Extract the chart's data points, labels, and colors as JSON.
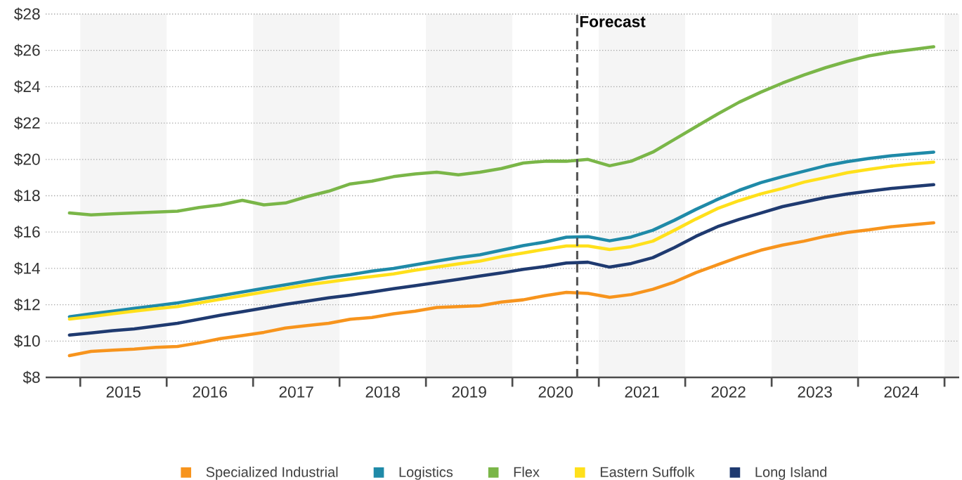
{
  "chart_data": {
    "type": "line",
    "x": [
      2014.875,
      2015.125,
      2015.375,
      2015.625,
      2015.875,
      2016.125,
      2016.375,
      2016.625,
      2016.875,
      2017.125,
      2017.375,
      2017.625,
      2017.875,
      2018.125,
      2018.375,
      2018.625,
      2018.875,
      2019.125,
      2019.375,
      2019.625,
      2019.875,
      2020.125,
      2020.375,
      2020.625,
      2020.875,
      2021.125,
      2021.375,
      2021.625,
      2021.875,
      2022.125,
      2022.375,
      2022.625,
      2022.875,
      2023.125,
      2023.375,
      2023.625,
      2023.875,
      2024.125,
      2024.375,
      2024.625,
      2024.875
    ],
    "series": [
      {
        "name": "Specialized Industrial",
        "color": "#f7941d",
        "values": [
          9.2,
          9.43,
          9.5,
          9.56,
          9.65,
          9.7,
          9.9,
          10.14,
          10.3,
          10.48,
          10.72,
          10.85,
          10.98,
          11.2,
          11.3,
          11.5,
          11.65,
          11.85,
          11.9,
          11.95,
          12.15,
          12.27,
          12.5,
          12.68,
          12.62,
          12.41,
          12.56,
          12.85,
          13.25,
          13.77,
          14.2,
          14.63,
          15.0,
          15.28,
          15.5,
          15.77,
          15.98,
          16.12,
          16.29,
          16.4,
          16.51
        ]
      },
      {
        "name": "Logistics",
        "color": "#1f8aa8",
        "values": [
          11.34,
          11.5,
          11.65,
          11.8,
          11.95,
          12.1,
          12.3,
          12.5,
          12.7,
          12.9,
          13.1,
          13.3,
          13.5,
          13.66,
          13.85,
          14.0,
          14.2,
          14.4,
          14.6,
          14.75,
          15.0,
          15.25,
          15.45,
          15.72,
          15.75,
          15.52,
          15.73,
          16.1,
          16.65,
          17.25,
          17.8,
          18.3,
          18.72,
          19.05,
          19.35,
          19.65,
          19.88,
          20.05,
          20.2,
          20.3,
          20.4
        ]
      },
      {
        "name": "Flex",
        "color": "#7ab648",
        "values": [
          17.05,
          16.95,
          17.0,
          17.05,
          17.1,
          17.15,
          17.35,
          17.5,
          17.75,
          17.5,
          17.6,
          17.95,
          18.25,
          18.65,
          18.8,
          19.05,
          19.2,
          19.3,
          19.15,
          19.3,
          19.5,
          19.8,
          19.9,
          19.9,
          20.0,
          19.65,
          19.9,
          20.4,
          21.1,
          21.8,
          22.5,
          23.15,
          23.7,
          24.2,
          24.65,
          25.05,
          25.4,
          25.7,
          25.9,
          26.05,
          26.2
        ]
      },
      {
        "name": "Eastern Suffolk",
        "color": "#ffe01b",
        "values": [
          11.21,
          11.35,
          11.5,
          11.65,
          11.78,
          11.9,
          12.1,
          12.3,
          12.5,
          12.7,
          12.9,
          13.1,
          13.25,
          13.42,
          13.55,
          13.7,
          13.9,
          14.07,
          14.25,
          14.4,
          14.65,
          14.85,
          15.05,
          15.23,
          15.23,
          15.04,
          15.2,
          15.5,
          16.1,
          16.72,
          17.3,
          17.73,
          18.1,
          18.4,
          18.75,
          19.0,
          19.27,
          19.45,
          19.62,
          19.75,
          19.85
        ]
      },
      {
        "name": "Long Island",
        "color": "#1f3a70",
        "values": [
          10.33,
          10.45,
          10.57,
          10.67,
          10.82,
          10.98,
          11.2,
          11.42,
          11.62,
          11.82,
          12.02,
          12.2,
          12.38,
          12.53,
          12.7,
          12.88,
          13.05,
          13.22,
          13.4,
          13.58,
          13.75,
          13.95,
          14.1,
          14.3,
          14.34,
          14.07,
          14.27,
          14.59,
          15.15,
          15.77,
          16.3,
          16.7,
          17.05,
          17.4,
          17.65,
          17.9,
          18.1,
          18.25,
          18.4,
          18.5,
          18.61
        ]
      }
    ],
    "xlim": [
      2014.6,
      2025.17
    ],
    "xticks": [
      {
        "value": 2015,
        "label": null
      },
      {
        "value": 2015.5,
        "label": "2015"
      },
      {
        "value": 2016,
        "label": null
      },
      {
        "value": 2016.5,
        "label": "2016"
      },
      {
        "value": 2017,
        "label": null
      },
      {
        "value": 2017.5,
        "label": "2017"
      },
      {
        "value": 2018,
        "label": null
      },
      {
        "value": 2018.5,
        "label": "2018"
      },
      {
        "value": 2019,
        "label": null
      },
      {
        "value": 2019.5,
        "label": "2019"
      },
      {
        "value": 2020,
        "label": null
      },
      {
        "value": 2020.5,
        "label": "2020"
      },
      {
        "value": 2021,
        "label": null
      },
      {
        "value": 2021.5,
        "label": "2021"
      },
      {
        "value": 2022,
        "label": null
      },
      {
        "value": 2022.5,
        "label": "2022"
      },
      {
        "value": 2023,
        "label": null
      },
      {
        "value": 2023.5,
        "label": "2023"
      },
      {
        "value": 2024,
        "label": null
      },
      {
        "value": 2024.5,
        "label": "2024"
      },
      {
        "value": 2025,
        "label": null
      }
    ],
    "ylim": [
      8,
      28
    ],
    "yticks": [
      {
        "value": 8,
        "label": "$8"
      },
      {
        "value": 10,
        "label": "$10"
      },
      {
        "value": 12,
        "label": "$12"
      },
      {
        "value": 14,
        "label": "$14"
      },
      {
        "value": 16,
        "label": "$16"
      },
      {
        "value": 18,
        "label": "$18"
      },
      {
        "value": 20,
        "label": "$20"
      },
      {
        "value": 22,
        "label": "$22"
      },
      {
        "value": 24,
        "label": "$24"
      },
      {
        "value": 26,
        "label": "$26"
      },
      {
        "value": 28,
        "label": "$28"
      }
    ],
    "ref_lines": [
      {
        "axis": "x",
        "value": 2020.75,
        "label": "Forecast",
        "color": "#555555",
        "line_style": "dashed"
      }
    ],
    "bands": [
      {
        "axis": "x",
        "from": 2015,
        "to": 2016,
        "color": "#f5f5f5"
      },
      {
        "axis": "x",
        "from": 2017,
        "to": 2018,
        "color": "#f5f5f5"
      },
      {
        "axis": "x",
        "from": 2019,
        "to": 2020,
        "color": "#f5f5f5"
      },
      {
        "axis": "x",
        "from": 2021,
        "to": 2022,
        "color": "#f5f5f5"
      },
      {
        "axis": "x",
        "from": 2023,
        "to": 2024,
        "color": "#f5f5f5"
      },
      {
        "axis": "x",
        "from": 2025,
        "to": 2025.17,
        "color": "#f5f5f5"
      }
    ],
    "grid": "y",
    "legend": "bottom",
    "marker": "none",
    "line_style": "solid"
  }
}
